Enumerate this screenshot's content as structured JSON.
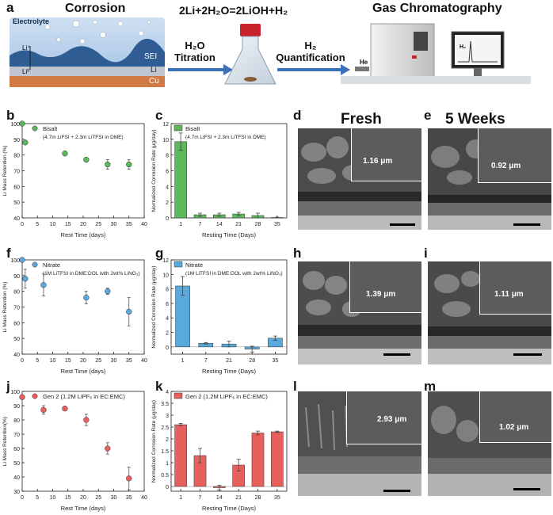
{
  "panel_a": {
    "label": "a",
    "corrosion_title": "Corrosion",
    "electrolyte": "Electrolyte",
    "sei": "SEI",
    "li": "Li",
    "cu": "Cu",
    "li_plus": "Li⁺",
    "li_zero": "Li⁰",
    "reaction": "2Li+2H₂O=2LiOH+H₂",
    "titration_1": "H₂O",
    "titration_2": "Titration",
    "quant_1": "H₂",
    "quant_2": "Quantification",
    "gc_title": "Gas Chromatography",
    "he": "He",
    "h2_screen": "H₂"
  },
  "column_titles": {
    "fresh": "Fresh",
    "weeks": "5 Weeks"
  },
  "panel_labels": {
    "b": "b",
    "c": "c",
    "d": "d",
    "e": "e",
    "f": "f",
    "g": "g",
    "h": "h",
    "i": "i",
    "j": "j",
    "k": "k",
    "l": "l",
    "m": "m"
  },
  "sem_thickness": {
    "d": "1.16 μm",
    "e": "0.92 μm",
    "h": "1.39 μm",
    "i": "1.11 μm",
    "l": "2.93 μm",
    "m": "1.02 μm"
  },
  "chart_data": [
    {
      "id": "b",
      "type": "scatter",
      "color": "#5cb85c",
      "legend": "Bisalt",
      "legend_note": "(4.7m LiFSI + 2.3m LiTFSI in DME)",
      "xlabel": "Rest Time (days)",
      "ylabel": "Li Mass Retention (%)",
      "xlim": [
        0,
        40
      ],
      "ylim": [
        40,
        100
      ],
      "xticks": [
        0,
        5,
        10,
        15,
        20,
        25,
        30,
        35,
        40
      ],
      "yticks": [
        40,
        50,
        60,
        70,
        80,
        90,
        100
      ],
      "x": [
        0,
        1,
        14,
        21,
        28,
        35
      ],
      "y": [
        100,
        88,
        81,
        77,
        74,
        74
      ],
      "err": [
        0,
        1,
        1,
        1,
        3,
        3
      ]
    },
    {
      "id": "c",
      "type": "bar",
      "color": "#5cb85c",
      "legend": "Bisalt",
      "legend_note": "(4.7m LiFSI + 2.3m LiTFSI in DME)",
      "xlabel": "Resting Time (Days)",
      "ylabel": "Normalized Corrosion Rate (μg/day)",
      "ylim": [
        0,
        12
      ],
      "yticks": [
        0,
        2,
        4,
        6,
        8,
        10,
        12
      ],
      "categories": [
        "1",
        "7",
        "14",
        "21",
        "28",
        "35"
      ],
      "values": [
        9.7,
        0.4,
        0.4,
        0.5,
        0.3,
        0.05
      ],
      "err": [
        1.1,
        0.2,
        0.2,
        0.2,
        0.3,
        0.05
      ]
    },
    {
      "id": "f",
      "type": "scatter",
      "color": "#5aa9dc",
      "legend": "Nitrate",
      "legend_note": "(1M LiTFSI in DME:DOL with 2wt% LiNO₃)",
      "xlabel": "Rest Time (days)",
      "ylabel": "Li Mass Retention (%)",
      "xlim": [
        0,
        40
      ],
      "ylim": [
        40,
        100
      ],
      "xticks": [
        0,
        5,
        10,
        15,
        20,
        25,
        30,
        35,
        40
      ],
      "yticks": [
        40,
        50,
        60,
        70,
        80,
        90,
        100
      ],
      "x": [
        0,
        1,
        7,
        21,
        28,
        35
      ],
      "y": [
        100,
        88,
        84,
        76,
        80,
        67
      ],
      "err": [
        0,
        6,
        7,
        4,
        2,
        9
      ]
    },
    {
      "id": "g",
      "type": "bar",
      "color": "#5aa9dc",
      "legend": "Nitrate",
      "legend_note": "(1M LiTFSI in DME:DOL with 2wt% LiNO₃)",
      "xlabel": "Resting Time (Days)",
      "ylabel": "Normalized Corrosion Rate (μg/day)",
      "ylim": [
        -1,
        12
      ],
      "yticks": [
        0,
        2,
        4,
        6,
        8,
        10,
        12
      ],
      "categories": [
        "1",
        "7",
        "21",
        "28",
        "35"
      ],
      "values": [
        8.4,
        0.5,
        0.4,
        -0.3,
        1.2
      ],
      "err": [
        1.3,
        0.1,
        0.4,
        0.4,
        0.3
      ]
    },
    {
      "id": "j",
      "type": "scatter",
      "color": "#e8605d",
      "legend": "Gen 2 (1.2M LiPF₆ in EC:EMC)",
      "xlabel": "Rest Time (days)",
      "ylabel": "Li Mass Retention(%)",
      "xlim": [
        0,
        40
      ],
      "ylim": [
        30,
        100
      ],
      "xticks": [
        0,
        5,
        10,
        15,
        20,
        25,
        30,
        35,
        40
      ],
      "yticks": [
        30,
        40,
        50,
        60,
        70,
        80,
        90,
        100
      ],
      "x": [
        0,
        7,
        14,
        21,
        28,
        35
      ],
      "y": [
        96,
        87,
        88,
        80,
        60,
        39
      ],
      "err": [
        1,
        3,
        1,
        4,
        4,
        8
      ]
    },
    {
      "id": "k",
      "type": "bar",
      "color": "#e8605d",
      "legend": "Gen 2 (1.2M LiPF₆ in EC:EMC)",
      "xlabel": "Resting Time (Days)",
      "ylabel": "Normalized Corrosion Rate (μg/day)",
      "ylim": [
        -0.2,
        4.0
      ],
      "yticks": [
        0.0,
        0.5,
        1.0,
        1.5,
        2.0,
        2.5,
        3.0,
        3.5,
        4.0
      ],
      "categories": [
        "1",
        "7",
        "14",
        "21",
        "28",
        "35"
      ],
      "values": [
        2.6,
        1.3,
        -0.05,
        0.9,
        2.25,
        2.3
      ],
      "err": [
        0.05,
        0.3,
        0.1,
        0.25,
        0.08,
        0.03
      ]
    }
  ]
}
